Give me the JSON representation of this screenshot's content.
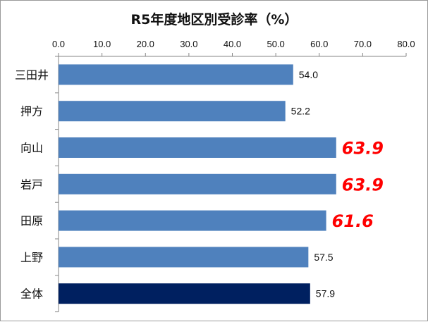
{
  "chart_data": {
    "type": "bar",
    "orientation": "horizontal",
    "title": "R5年度地区別受診率（%）",
    "categories": [
      "三田井",
      "押方",
      "向山",
      "岩戸",
      "田原",
      "上野",
      "全体"
    ],
    "values": [
      54.0,
      52.2,
      63.9,
      63.9,
      61.6,
      57.5,
      57.9
    ],
    "data_labels": [
      "54.0",
      "52.2",
      "63.9",
      "63.9",
      "61.6",
      "57.5",
      "57.9"
    ],
    "highlighted": [
      false,
      false,
      true,
      true,
      true,
      false,
      false
    ],
    "x_ticks": [
      "0.0",
      "10.0",
      "20.0",
      "30.0",
      "40.0",
      "50.0",
      "60.0",
      "70.0",
      "80.0"
    ],
    "xlim": [
      0,
      80
    ],
    "x_axis_position": "top",
    "grid": false,
    "legend": "none",
    "colors": {
      "bar": "#4f81bd",
      "total_bar": "#002060",
      "highlight_label": "#ff0000",
      "axis": "#868686"
    }
  }
}
